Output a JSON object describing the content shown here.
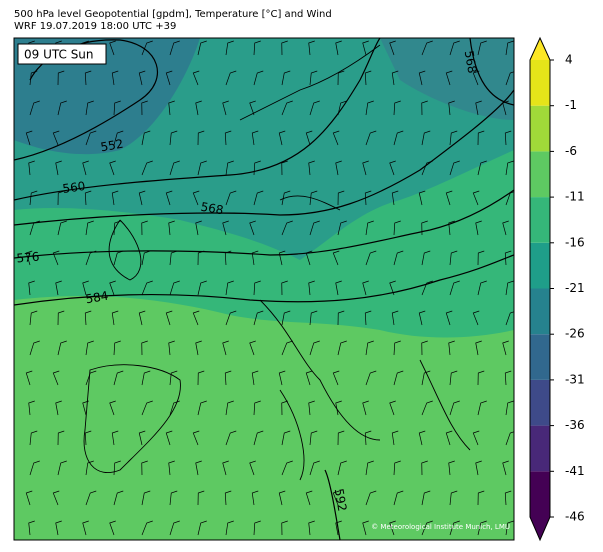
{
  "header": {
    "line1": "500 hPa level Geopotential [gpdm], Temperature [°C] and Wind",
    "line2": "WRF 19.07.2019 18:00 UTC +39"
  },
  "map": {
    "time_label": "09 UTC Sun",
    "contour_labels": [
      552,
      560,
      568,
      576,
      584,
      592,
      568
    ],
    "credit": "© Meteorological Institute Munich, LMU"
  },
  "colorbar": {
    "ticks": [
      -46,
      -41,
      -36,
      -31,
      -26,
      -21,
      -16,
      -11,
      -6,
      -1,
      4
    ],
    "colors": [
      "#440154",
      "#482878",
      "#3e4a89",
      "#31688e",
      "#26828e",
      "#1f9e89",
      "#35b779",
      "#5ec962",
      "#a0da39",
      "#e5e419"
    ],
    "under": "#440154",
    "over": "#fde725"
  }
}
